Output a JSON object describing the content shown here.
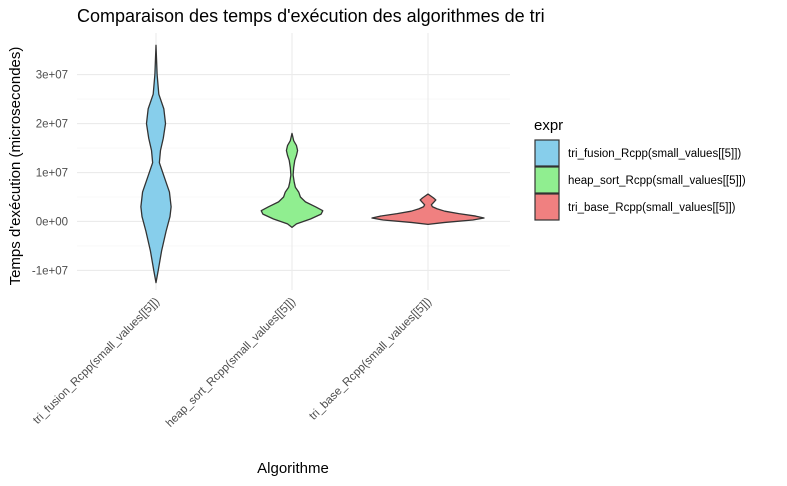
{
  "chart_data": {
    "type": "violin",
    "title": "Comparaison des temps d'exécution des algorithmes de tri",
    "xlabel": "Algorithme",
    "ylabel": "Temps d'exécution (microsecondes)",
    "ylim": [
      -14000000,
      38500000
    ],
    "y_ticks": [
      -10000000,
      0,
      10000000,
      20000000,
      30000000
    ],
    "y_tick_labels": [
      "-1e+07",
      "0e+00",
      "1e+07",
      "2e+07",
      "3e+07"
    ],
    "categories": [
      "tri_fusion_Rcpp(small_values[[5]])",
      "heap_sort_Rcpp(small_values[[5]])",
      "tri_base_Rcpp(small_values[[5]])"
    ],
    "grid": true,
    "legend": {
      "title": "expr",
      "position": "right",
      "entries": [
        {
          "label": "tri_fusion_Rcpp(small_values[[5]])",
          "color": "#87CEEB"
        },
        {
          "label": "heap_sort_Rcpp(small_values[[5]])",
          "color": "#90EE90"
        },
        {
          "label": "tri_base_Rcpp(small_values[[5]])",
          "color": "#F08080"
        }
      ]
    },
    "series": [
      {
        "category": "tri_fusion_Rcpp(small_values[[5]])",
        "color": "#87CEEB",
        "ymin": -12500000,
        "ymax": 36000000,
        "profile": [
          [
            -12500000,
            0.0
          ],
          [
            -10000000,
            0.04
          ],
          [
            -6000000,
            0.1
          ],
          [
            -2000000,
            0.18
          ],
          [
            1000000,
            0.25
          ],
          [
            3000000,
            0.27
          ],
          [
            6000000,
            0.24
          ],
          [
            9000000,
            0.15
          ],
          [
            12000000,
            0.06
          ],
          [
            14500000,
            0.08
          ],
          [
            17000000,
            0.13
          ],
          [
            20000000,
            0.17
          ],
          [
            23000000,
            0.14
          ],
          [
            26000000,
            0.05
          ],
          [
            30000000,
            0.02
          ],
          [
            33000000,
            0.01
          ],
          [
            36000000,
            0.0
          ]
        ]
      },
      {
        "category": "heap_sort_Rcpp(small_values[[5]])",
        "color": "#90EE90",
        "ymin": -1200000,
        "ymax": 18000000,
        "profile": [
          [
            -1200000,
            0.0
          ],
          [
            -500000,
            0.08
          ],
          [
            500000,
            0.33
          ],
          [
            1500000,
            0.52
          ],
          [
            2200000,
            0.55
          ],
          [
            3000000,
            0.42
          ],
          [
            4000000,
            0.24
          ],
          [
            5000000,
            0.15
          ],
          [
            6000000,
            0.12
          ],
          [
            7000000,
            0.06
          ],
          [
            8000000,
            0.04
          ],
          [
            9500000,
            0.02
          ],
          [
            11000000,
            0.03
          ],
          [
            12500000,
            0.05
          ],
          [
            13500000,
            0.08
          ],
          [
            14500000,
            0.1
          ],
          [
            15500000,
            0.08
          ],
          [
            16500000,
            0.03
          ],
          [
            18000000,
            0.0
          ]
        ]
      },
      {
        "category": "tri_base_Rcpp(small_values[[5]])",
        "color": "#F08080",
        "ymin": -600000,
        "ymax": 5600000,
        "profile": [
          [
            -600000,
            0.0
          ],
          [
            -200000,
            0.3
          ],
          [
            300000,
            0.8
          ],
          [
            700000,
            1.0
          ],
          [
            1100000,
            0.85
          ],
          [
            1600000,
            0.55
          ],
          [
            2100000,
            0.3
          ],
          [
            2600000,
            0.16
          ],
          [
            3000000,
            0.08
          ],
          [
            3400000,
            0.06
          ],
          [
            3900000,
            0.1
          ],
          [
            4400000,
            0.14
          ],
          [
            4800000,
            0.1
          ],
          [
            5200000,
            0.05
          ],
          [
            5600000,
            0.0
          ]
        ]
      }
    ]
  }
}
